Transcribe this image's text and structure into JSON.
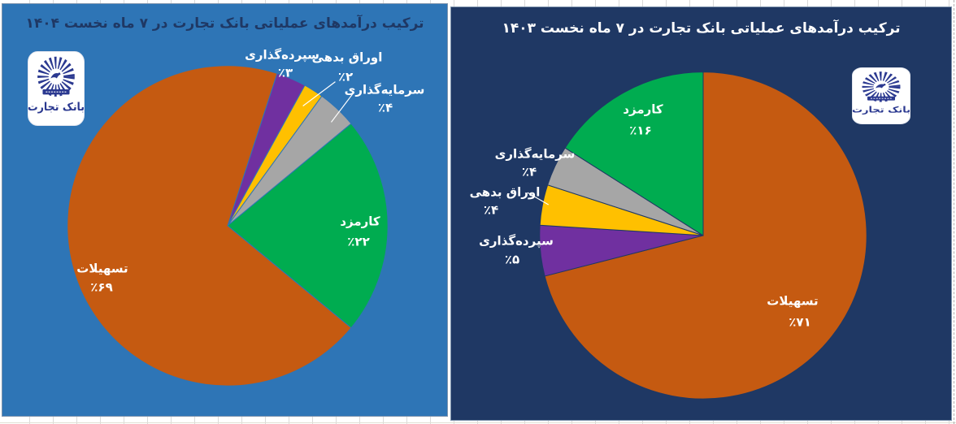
{
  "page": {
    "background": "#ffffff",
    "gridline_color": "#d9d9d9"
  },
  "logo": {
    "text": "بانک تجارت",
    "color": "#2b3990",
    "background": "#ffffff"
  },
  "charts": [
    {
      "title": "ترکیب درآمدهای عملیاتی بانک تجارت در ۷ ماه نخست ۱۴۰۴",
      "background": "#2E75B6",
      "title_color": "#1F3864",
      "label_color": "#ffffff"
    },
    {
      "title": "ترکیب درآمدهای عملیاتی بانک تجارت در ۷ ماه نخست ۱۴۰۳",
      "background": "#1F3864",
      "title_color": "#ffffff",
      "label_color": "#ffffff"
    }
  ],
  "chart_data": [
    {
      "type": "pie",
      "title": "ترکیب درآمدهای عملیاتی بانک تجارت در ۷ ماه نخست ۱۴۰۴",
      "unit": "percent",
      "direction": "clockwise",
      "start_angle_deg": 18,
      "legend": "none",
      "slices": [
        {
          "key": "deposits",
          "label": "سپرده‌گذاری",
          "value": 3,
          "display": "٪۳",
          "color": "#7030A0"
        },
        {
          "key": "debt-securities",
          "label": "اوراق بدهی",
          "value": 2,
          "display": "٪۲",
          "color": "#FFC000"
        },
        {
          "key": "investment",
          "label": "سرمایه‌گذاری",
          "value": 4,
          "display": "٪۴",
          "color": "#A6A6A6"
        },
        {
          "key": "fees",
          "label": "کارمزد",
          "value": 22,
          "display": "٪۲۲",
          "color": "#00AC50"
        },
        {
          "key": "facilities",
          "label": "تسهیلات",
          "value": 69,
          "display": "٪۶۹",
          "color": "#C55A11"
        }
      ]
    },
    {
      "type": "pie",
      "title": "ترکیب درآمدهای عملیاتی بانک تجارت در ۷ ماه نخست ۱۴۰۳",
      "unit": "percent",
      "direction": "clockwise",
      "start_angle_deg": 0,
      "legend": "none",
      "slices": [
        {
          "key": "facilities",
          "label": "تسهیلات",
          "value": 71,
          "display": "٪۷۱",
          "color": "#C55A11"
        },
        {
          "key": "deposits",
          "label": "سپرده‌گذاری",
          "value": 5,
          "display": "٪۵",
          "color": "#7030A0"
        },
        {
          "key": "debt-securities",
          "label": "اوراق بدهی",
          "value": 4,
          "display": "٪۴",
          "color": "#FFC000"
        },
        {
          "key": "investment",
          "label": "سرمایه‌گذاری",
          "value": 4,
          "display": "٪۴",
          "color": "#A6A6A6"
        },
        {
          "key": "fees",
          "label": "کارمزد",
          "value": 16,
          "display": "٪۱۶",
          "color": "#00AC50"
        }
      ]
    }
  ]
}
